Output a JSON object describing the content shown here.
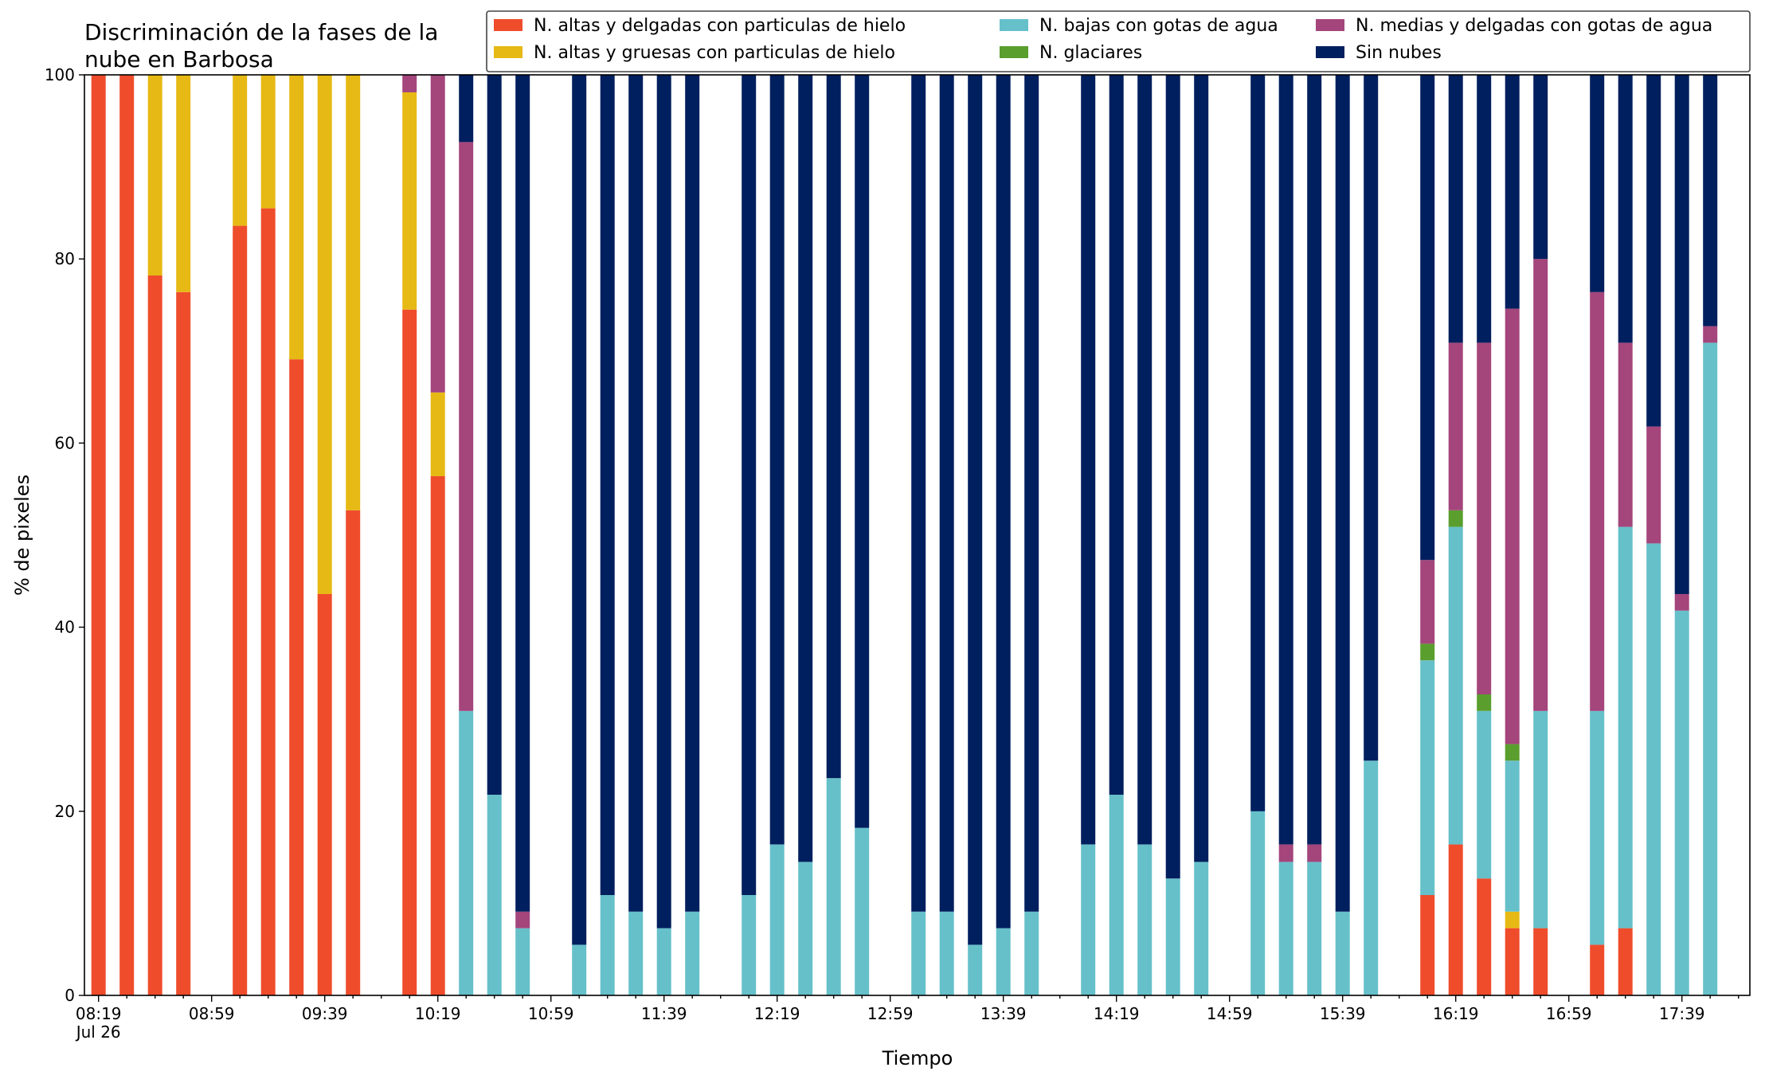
{
  "chart_data": {
    "type": "bar",
    "stacked": true,
    "title": [
      "Discriminación de la fases de la",
      "nube en Barbosa"
    ],
    "xlabel": "Tiempo",
    "ylabel": "% de pixeles",
    "ylim": [
      0,
      100
    ],
    "yticks": [
      0,
      20,
      40,
      60,
      80,
      100
    ],
    "x_start": "08:19",
    "x_step_minutes": 10,
    "x_slot_count": 59,
    "x_tick_labels": [
      "08:19",
      "08:59",
      "09:39",
      "10:19",
      "10:59",
      "11:39",
      "12:19",
      "12:59",
      "13:39",
      "14:19",
      "14:59",
      "15:39",
      "16:19",
      "16:59",
      "17:39"
    ],
    "x_tick_sublabel": "Jul 26",
    "legend_position": "top-right",
    "series": [
      {
        "name": "N. altas y delgadas con particulas de hielo",
        "color": "#ef4c2c"
      },
      {
        "name": "N. altas y gruesas con particulas de hielo",
        "color": "#e6b914"
      },
      {
        "name": "N. bajas con gotas de agua",
        "color": "#66c0ca"
      },
      {
        "name": "N. glaciares",
        "color": "#5a9e2e"
      },
      {
        "name": "N. medias y delgadas con gotas de agua",
        "color": "#a4457c"
      },
      {
        "name": "Sin nubes",
        "color": "#001f5e"
      }
    ],
    "bars": [
      {
        "time": "08:19",
        "values": [
          100,
          0,
          0,
          0,
          0,
          0
        ]
      },
      {
        "time": "08:29",
        "values": [
          100,
          0,
          0,
          0,
          0,
          0
        ]
      },
      {
        "time": "08:39",
        "values": [
          78.2,
          21.8,
          0,
          0,
          0,
          0
        ]
      },
      {
        "time": "08:49",
        "values": [
          76.4,
          23.6,
          0,
          0,
          0,
          0
        ]
      },
      {
        "time": "09:09",
        "values": [
          83.6,
          16.4,
          0,
          0,
          0,
          0
        ]
      },
      {
        "time": "09:19",
        "values": [
          85.5,
          14.5,
          0,
          0,
          0,
          0
        ]
      },
      {
        "time": "09:29",
        "values": [
          69.1,
          30.9,
          0,
          0,
          0,
          0
        ]
      },
      {
        "time": "09:39",
        "values": [
          43.6,
          56.4,
          0,
          0,
          0,
          0
        ]
      },
      {
        "time": "09:49",
        "values": [
          52.7,
          47.3,
          0,
          0,
          0,
          0
        ]
      },
      {
        "time": "10:09",
        "values": [
          74.5,
          23.6,
          0,
          0,
          1.9,
          0
        ]
      },
      {
        "time": "10:19",
        "values": [
          56.4,
          9.1,
          0,
          0,
          34.5,
          0
        ]
      },
      {
        "time": "10:29",
        "values": [
          0,
          0,
          30.9,
          0,
          61.8,
          7.3
        ]
      },
      {
        "time": "10:39",
        "values": [
          0,
          0,
          21.8,
          0,
          0,
          78.2
        ]
      },
      {
        "time": "10:49",
        "values": [
          0,
          0,
          7.3,
          0,
          1.8,
          90.9
        ]
      },
      {
        "time": "11:09",
        "values": [
          0,
          0,
          5.5,
          0,
          0,
          94.5
        ]
      },
      {
        "time": "11:19",
        "values": [
          0,
          0,
          10.9,
          0,
          0,
          89.1
        ]
      },
      {
        "time": "11:29",
        "values": [
          0,
          0,
          9.1,
          0,
          0,
          90.9
        ]
      },
      {
        "time": "11:39",
        "values": [
          0,
          0,
          7.3,
          0,
          0,
          92.7
        ]
      },
      {
        "time": "11:49",
        "values": [
          0,
          0,
          9.1,
          0,
          0,
          90.9
        ]
      },
      {
        "time": "12:09",
        "values": [
          0,
          0,
          10.9,
          0,
          0,
          89.1
        ]
      },
      {
        "time": "12:19",
        "values": [
          0,
          0,
          16.4,
          0,
          0,
          83.6
        ]
      },
      {
        "time": "12:29",
        "values": [
          0,
          0,
          14.5,
          0,
          0,
          85.5
        ]
      },
      {
        "time": "12:39",
        "values": [
          0,
          0,
          23.6,
          0,
          0,
          76.4
        ]
      },
      {
        "time": "12:49",
        "values": [
          0,
          0,
          18.2,
          0,
          0,
          81.8
        ]
      },
      {
        "time": "13:09",
        "values": [
          0,
          0,
          9.1,
          0,
          0,
          90.9
        ]
      },
      {
        "time": "13:19",
        "values": [
          0,
          0,
          9.1,
          0,
          0,
          90.9
        ]
      },
      {
        "time": "13:29",
        "values": [
          0,
          0,
          5.5,
          0,
          0,
          94.5
        ]
      },
      {
        "time": "13:39",
        "values": [
          0,
          0,
          7.3,
          0,
          0,
          92.7
        ]
      },
      {
        "time": "13:49",
        "values": [
          0,
          0,
          9.1,
          0,
          0,
          90.9
        ]
      },
      {
        "time": "14:09",
        "values": [
          0,
          0,
          16.4,
          0,
          0,
          83.6
        ]
      },
      {
        "time": "14:19",
        "values": [
          0,
          0,
          21.8,
          0,
          0,
          78.2
        ]
      },
      {
        "time": "14:29",
        "values": [
          0,
          0,
          16.4,
          0,
          0,
          83.6
        ]
      },
      {
        "time": "14:39",
        "values": [
          0,
          0,
          12.7,
          0,
          0,
          87.3
        ]
      },
      {
        "time": "14:49",
        "values": [
          0,
          0,
          14.5,
          0,
          0,
          85.5
        ]
      },
      {
        "time": "15:09",
        "values": [
          0,
          0,
          20.0,
          0,
          0,
          80.0
        ]
      },
      {
        "time": "15:19",
        "values": [
          0,
          0,
          14.5,
          0,
          1.9,
          83.6
        ]
      },
      {
        "time": "15:29",
        "values": [
          0,
          0,
          14.5,
          0,
          1.9,
          83.6
        ]
      },
      {
        "time": "15:39",
        "values": [
          0,
          0,
          9.1,
          0,
          0,
          90.9
        ]
      },
      {
        "time": "15:49",
        "values": [
          0,
          0,
          25.5,
          0,
          0,
          74.5
        ]
      },
      {
        "time": "16:09",
        "values": [
          10.9,
          0,
          25.5,
          1.8,
          9.1,
          52.7
        ]
      },
      {
        "time": "16:19",
        "values": [
          16.4,
          0,
          34.5,
          1.8,
          18.2,
          29.1
        ]
      },
      {
        "time": "16:29",
        "values": [
          12.7,
          0,
          18.2,
          1.8,
          38.2,
          29.1
        ]
      },
      {
        "time": "16:39",
        "values": [
          7.3,
          1.8,
          16.4,
          1.8,
          47.3,
          25.4
        ]
      },
      {
        "time": "16:49",
        "values": [
          7.3,
          0,
          23.6,
          0,
          49.1,
          20.0
        ]
      },
      {
        "time": "17:09",
        "values": [
          5.5,
          0,
          25.4,
          0,
          45.5,
          23.6
        ]
      },
      {
        "time": "17:19",
        "values": [
          7.3,
          0,
          43.6,
          0,
          20.0,
          29.1
        ]
      },
      {
        "time": "17:29",
        "values": [
          0,
          0,
          49.1,
          0,
          12.7,
          38.2
        ]
      },
      {
        "time": "17:39",
        "values": [
          0,
          0,
          41.8,
          0,
          1.8,
          56.4
        ]
      },
      {
        "time": "17:49",
        "values": [
          0,
          0,
          70.9,
          0,
          1.8,
          27.3
        ]
      }
    ]
  }
}
